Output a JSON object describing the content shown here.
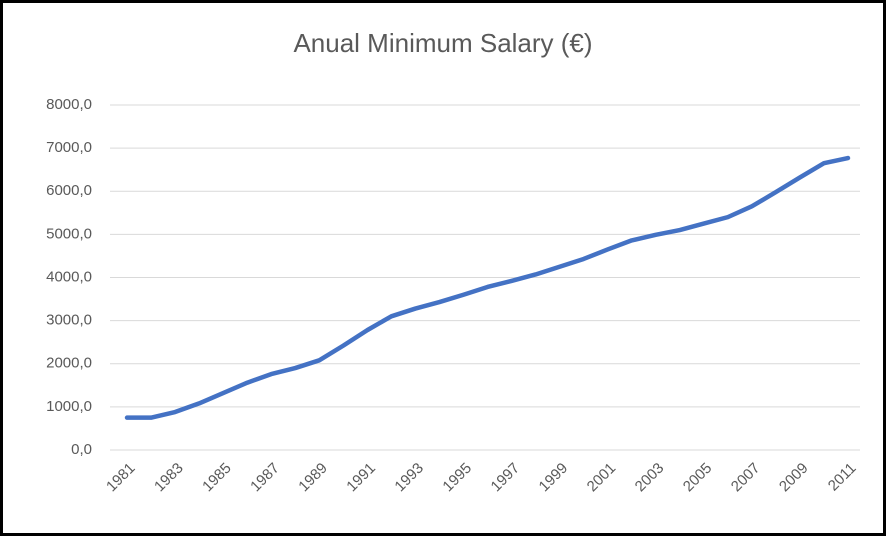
{
  "chart_data": {
    "type": "line",
    "title": "Anual Minimum Salary (€)",
    "categories": [
      "1981",
      null,
      "1983",
      null,
      "1985",
      null,
      "1987",
      null,
      "1989",
      null,
      "1991",
      null,
      "1993",
      null,
      "1995",
      null,
      "1997",
      null,
      "1999",
      null,
      "2001",
      null,
      "2003",
      null,
      "2005",
      null,
      "2007",
      null,
      "2009",
      null,
      "2011"
    ],
    "series": [
      {
        "name": "Anual Minimum Salary",
        "color": "#4472c4",
        "values": [
          750,
          750,
          880,
          1080,
          1320,
          1560,
          1760,
          1900,
          2080,
          2420,
          2780,
          3100,
          3280,
          3430,
          3600,
          3780,
          3920,
          4070,
          4250,
          4430,
          4650,
          4860,
          4990,
          5100,
          5250,
          5400,
          5650,
          5980,
          6320,
          6650,
          6770
        ]
      }
    ],
    "ylim": [
      0,
      8000
    ],
    "yticks": [
      {
        "value": 0,
        "label": "0,0"
      },
      {
        "value": 1000,
        "label": "1000,0"
      },
      {
        "value": 2000,
        "label": "2000,0"
      },
      {
        "value": 3000,
        "label": "3000,0"
      },
      {
        "value": 4000,
        "label": "4000,0"
      },
      {
        "value": 5000,
        "label": "5000,0"
      },
      {
        "value": 6000,
        "label": "6000,0"
      },
      {
        "value": 7000,
        "label": "7000,0"
      },
      {
        "value": 8000,
        "label": "8000,0"
      }
    ],
    "grid": true
  }
}
